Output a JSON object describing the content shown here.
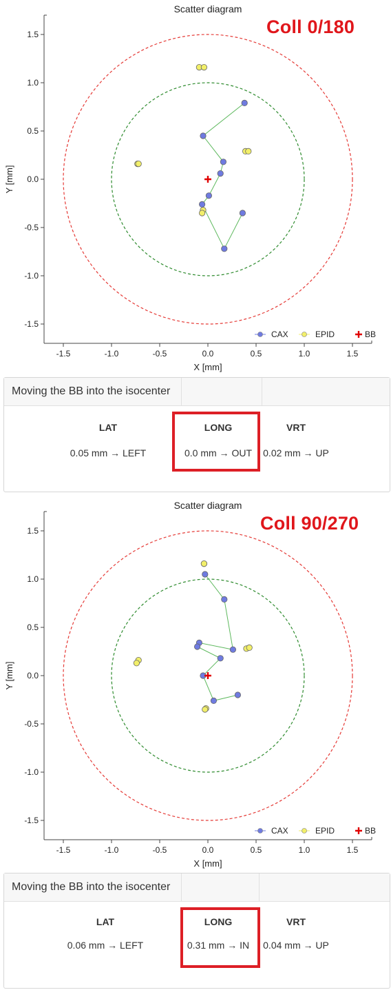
{
  "charts": [
    {
      "annotation": "Coll 0/180",
      "chart_data": {
        "type": "scatter",
        "title": "Scatter diagram",
        "xlabel": "X [mm]",
        "ylabel": "Y [mm]",
        "xlim": [
          -1.7,
          1.7
        ],
        "ylim": [
          -1.7,
          1.7
        ],
        "x_ticks": [
          "-1.5",
          "-1.0",
          "-0.5",
          "0.0",
          "0.5",
          "1.0",
          "1.5"
        ],
        "y_ticks": [
          "1.5",
          "1.0",
          "0.5",
          "0.0",
          "-0.5",
          "-1.0",
          "-1.5"
        ],
        "grid": false,
        "legend": "bottom-right",
        "circles": [
          {
            "radius": 1.5,
            "color": "#e53935"
          },
          {
            "radius": 1.0,
            "color": "#2e8b2e"
          }
        ],
        "series": [
          {
            "name": "CAX",
            "color": "#6f7be0",
            "connected": true,
            "x": [
              0.38,
              -0.05,
              0.16,
              0.13,
              0.01,
              -0.06,
              0.17,
              0.36
            ],
            "y": [
              0.79,
              0.45,
              0.18,
              0.06,
              -0.17,
              -0.26,
              -0.72,
              -0.35
            ]
          },
          {
            "name": "EPID",
            "color": "#f2ef6a",
            "connected": false,
            "x": [
              -0.09,
              -0.04,
              -0.73,
              -0.72,
              0.39,
              0.42,
              -0.05,
              -0.06
            ],
            "y": [
              1.16,
              1.16,
              0.16,
              0.16,
              0.29,
              0.29,
              -0.32,
              -0.35
            ]
          },
          {
            "name": "BB",
            "color": "#e00000",
            "marker": "cross",
            "x": [
              0.0
            ],
            "y": [
              0.0
            ]
          }
        ]
      },
      "panel": {
        "title": "Moving the BB into the isocenter",
        "lat": {
          "label": "LAT",
          "value": "0.05 mm → LEFT"
        },
        "long": {
          "label": "LONG",
          "value": "0.0 mm → OUT"
        },
        "vrt": {
          "label": "VRT",
          "value": "0.02 mm → UP"
        }
      }
    },
    {
      "annotation": "Coll 90/270",
      "chart_data": {
        "type": "scatter",
        "title": "Scatter diagram",
        "xlabel": "X [mm]",
        "ylabel": "Y [mm]",
        "xlim": [
          -1.7,
          1.7
        ],
        "ylim": [
          -1.7,
          1.7
        ],
        "x_ticks": [
          "-1.5",
          "-1.0",
          "-0.5",
          "0.0",
          "0.5",
          "1.0",
          "1.5"
        ],
        "y_ticks": [
          "1.5",
          "1.0",
          "0.5",
          "0.0",
          "-0.5",
          "-1.0",
          "-1.5"
        ],
        "grid": false,
        "legend": "bottom-right",
        "circles": [
          {
            "radius": 1.5,
            "color": "#e53935"
          },
          {
            "radius": 1.0,
            "color": "#2e8b2e"
          }
        ],
        "series": [
          {
            "name": "CAX",
            "color": "#6f7be0",
            "connected": true,
            "x": [
              -0.03,
              0.17,
              0.26,
              -0.09,
              -0.11,
              0.13,
              -0.05,
              0.06,
              0.31
            ],
            "y": [
              1.05,
              0.79,
              0.27,
              0.34,
              0.3,
              0.18,
              0.0,
              -0.26,
              -0.2
            ]
          },
          {
            "name": "EPID",
            "color": "#f2ef6a",
            "connected": false,
            "x": [
              -0.04,
              -0.04,
              -0.72,
              -0.74,
              0.4,
              0.43,
              -0.02,
              -0.03
            ],
            "y": [
              1.16,
              1.16,
              0.16,
              0.13,
              0.28,
              0.29,
              -0.34,
              -0.35
            ]
          },
          {
            "name": "BB",
            "color": "#e00000",
            "marker": "cross",
            "x": [
              0.0
            ],
            "y": [
              0.0
            ]
          }
        ]
      },
      "panel": {
        "title": "Moving the BB into the isocenter",
        "lat": {
          "label": "LAT",
          "value": "0.06 mm → LEFT"
        },
        "long": {
          "label": "LONG",
          "value": "0.31 mm → IN"
        },
        "vrt": {
          "label": "VRT",
          "value": "0.04 mm → UP"
        }
      }
    }
  ]
}
